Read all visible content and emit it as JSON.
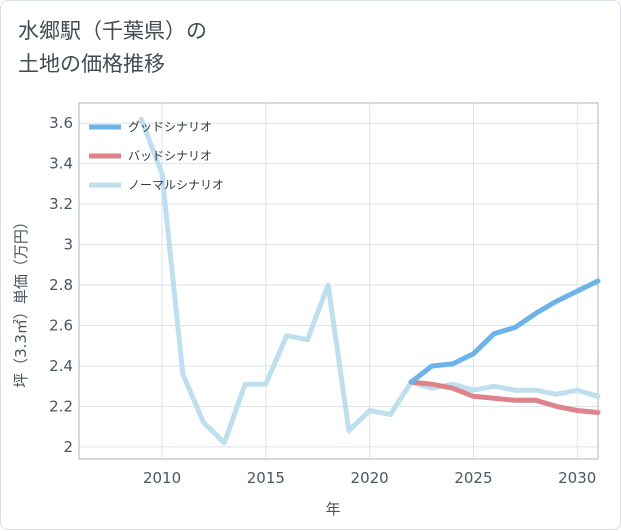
{
  "title": {
    "line1": "水郷駅（千葉県）の",
    "line2": "土地の価格推移"
  },
  "chart_data": {
    "type": "line",
    "xlabel": "年",
    "ylabel": "坪（3.3㎡）単価（万円）",
    "xlim": [
      2006,
      2031
    ],
    "ylim": [
      1.94,
      3.7
    ],
    "x_ticks": [
      2010,
      2015,
      2020,
      2025,
      2030
    ],
    "y_ticks": [
      2,
      2.2,
      2.4,
      2.6,
      2.8,
      3,
      3.2,
      3.4,
      3.6
    ],
    "x_tick_labels": [
      "2010",
      "2015",
      "2020",
      "2025",
      "2030"
    ],
    "y_tick_labels": [
      "2",
      "2.2",
      "2.4",
      "2.6",
      "2.8",
      "3",
      "3.2",
      "3.4",
      "3.6"
    ],
    "grid": true,
    "legend_position": "top-left",
    "series": [
      {
        "name": "グッドシナリオ",
        "color": "#6bb3e8",
        "x": [
          2022,
          2023,
          2024,
          2025,
          2026,
          2027,
          2028,
          2029,
          2030,
          2031
        ],
        "y": [
          2.32,
          2.4,
          2.41,
          2.46,
          2.56,
          2.59,
          2.66,
          2.72,
          2.77,
          2.82
        ]
      },
      {
        "name": "バッドシナリオ",
        "color": "#dc848a",
        "x": [
          2022,
          2023,
          2024,
          2025,
          2026,
          2027,
          2028,
          2029,
          2030,
          2031
        ],
        "y": [
          2.32,
          2.31,
          2.29,
          2.25,
          2.24,
          2.23,
          2.23,
          2.2,
          2.18,
          2.17
        ]
      },
      {
        "name": "ノーマルシナリオ",
        "color": "#bfdfee",
        "x": [
          2009,
          2010,
          2011,
          2012,
          2013,
          2014,
          2015,
          2016,
          2017,
          2018,
          2019,
          2020,
          2021,
          2022,
          2023,
          2024,
          2025,
          2026,
          2027,
          2028,
          2029,
          2030,
          2031
        ],
        "y": [
          3.62,
          3.35,
          2.36,
          2.12,
          2.02,
          2.31,
          2.31,
          2.55,
          2.53,
          2.8,
          2.08,
          2.18,
          2.16,
          2.32,
          2.29,
          2.31,
          2.28,
          2.3,
          2.28,
          2.28,
          2.26,
          2.28,
          2.25
        ]
      }
    ]
  }
}
